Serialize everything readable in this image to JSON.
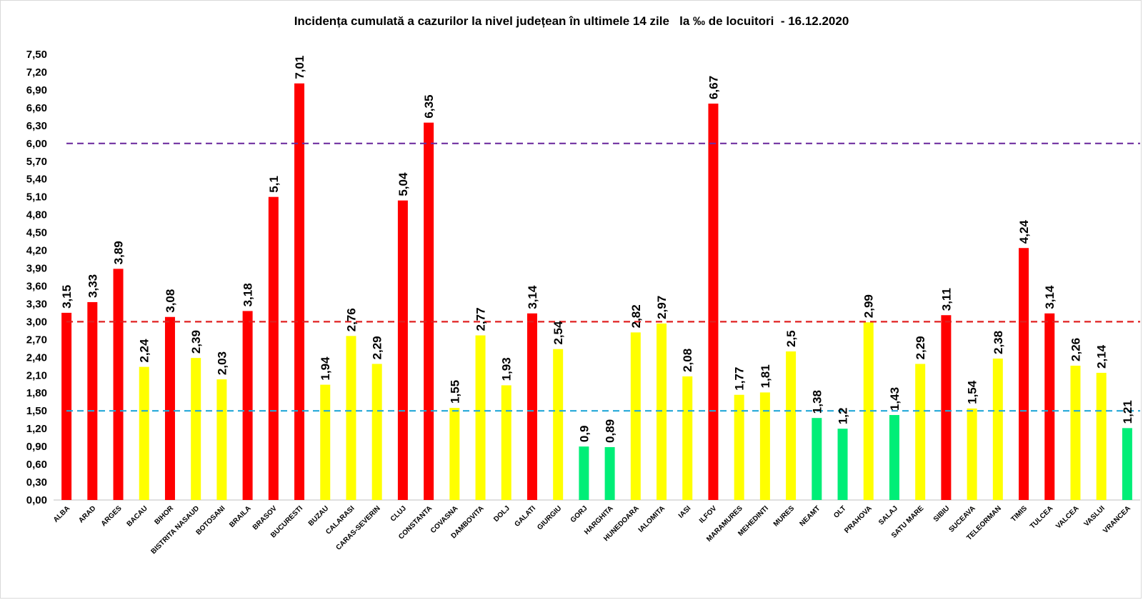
{
  "chart_data": {
    "type": "bar",
    "title": "Incidența cumulată a cazurilor la nivel județean în ultimele 14 zile   la ‰ de locuitori  - 16.12.2020",
    "xlabel": "",
    "ylabel": "",
    "ylim": [
      0,
      7.5
    ],
    "yticks": [
      "0,00",
      "0,30",
      "0,60",
      "0,90",
      "1,20",
      "1,50",
      "1,80",
      "2,10",
      "2,40",
      "2,70",
      "3,00",
      "3,30",
      "3,60",
      "3,90",
      "4,20",
      "4,50",
      "4,80",
      "5,10",
      "5,40",
      "5,70",
      "6,00",
      "6,30",
      "6,60",
      "6,90",
      "7,20",
      "7,50"
    ],
    "grid": false,
    "legend": "none",
    "categories": [
      "ALBA",
      "ARAD",
      "ARGES",
      "BACAU",
      "BIHOR",
      "BISTRITA NASAUD",
      "BOTOSANI",
      "BRAILA",
      "BRASOV",
      "BUCURESTI",
      "BUZAU",
      "CALARASI",
      "CARAS-SEVERIN",
      "CLUJ",
      "CONSTANTA",
      "COVASNA",
      "DAMBOVITA",
      "DOLJ",
      "GALATI",
      "GIURGIU",
      "GORJ",
      "HARGHITA",
      "HUNEDOARA",
      "IALOMITA",
      "IASI",
      "ILFOV",
      "MARAMURES",
      "MEHEDINTI",
      "MURES",
      "NEAMT",
      "OLT",
      "PRAHOVA",
      "SALAJ",
      "SATU MARE",
      "SIBIU",
      "SUCEAVA",
      "TELEORMAN",
      "TIMIS",
      "TULCEA",
      "VALCEA",
      "VASLUI",
      "VRANCEA"
    ],
    "values": [
      3.15,
      3.33,
      3.89,
      2.24,
      3.08,
      2.39,
      2.03,
      3.18,
      5.1,
      7.01,
      1.94,
      2.76,
      2.29,
      5.04,
      6.35,
      1.55,
      2.77,
      1.93,
      3.14,
      2.54,
      0.9,
      0.89,
      2.82,
      2.97,
      2.08,
      6.67,
      1.77,
      1.81,
      2.5,
      1.38,
      1.2,
      2.99,
      1.43,
      2.29,
      3.11,
      1.54,
      2.38,
      4.24,
      3.14,
      2.26,
      2.14,
      1.21
    ],
    "data_labels": [
      "3,15",
      "3,33",
      "3,89",
      "2,24",
      "3,08",
      "2,39",
      "2,03",
      "3,18",
      "5,1",
      "7,01",
      "1,94",
      "2,76",
      "2,29",
      "5,04",
      "6,35",
      "1,55",
      "2,77",
      "1,93",
      "3,14",
      "2,54",
      "0,9",
      "0,89",
      "2,82",
      "2,97",
      "2,08",
      "6,67",
      "1,77",
      "1,81",
      "2,5",
      "1,38",
      "1,2",
      "2,99",
      "1,43",
      "2,29",
      "3,11",
      "1,54",
      "2,38",
      "4,24",
      "3,14",
      "2,26",
      "2,14",
      "1,21"
    ],
    "thresholds": [
      {
        "value": 6.0,
        "color": "#7030a0"
      },
      {
        "value": 3.0,
        "color": "#e02020"
      },
      {
        "value": 1.5,
        "color": "#23a8d8"
      }
    ],
    "colors": {
      "high": "#ff0000",
      "medium": "#ffff00",
      "low": "#00ee77"
    }
  }
}
